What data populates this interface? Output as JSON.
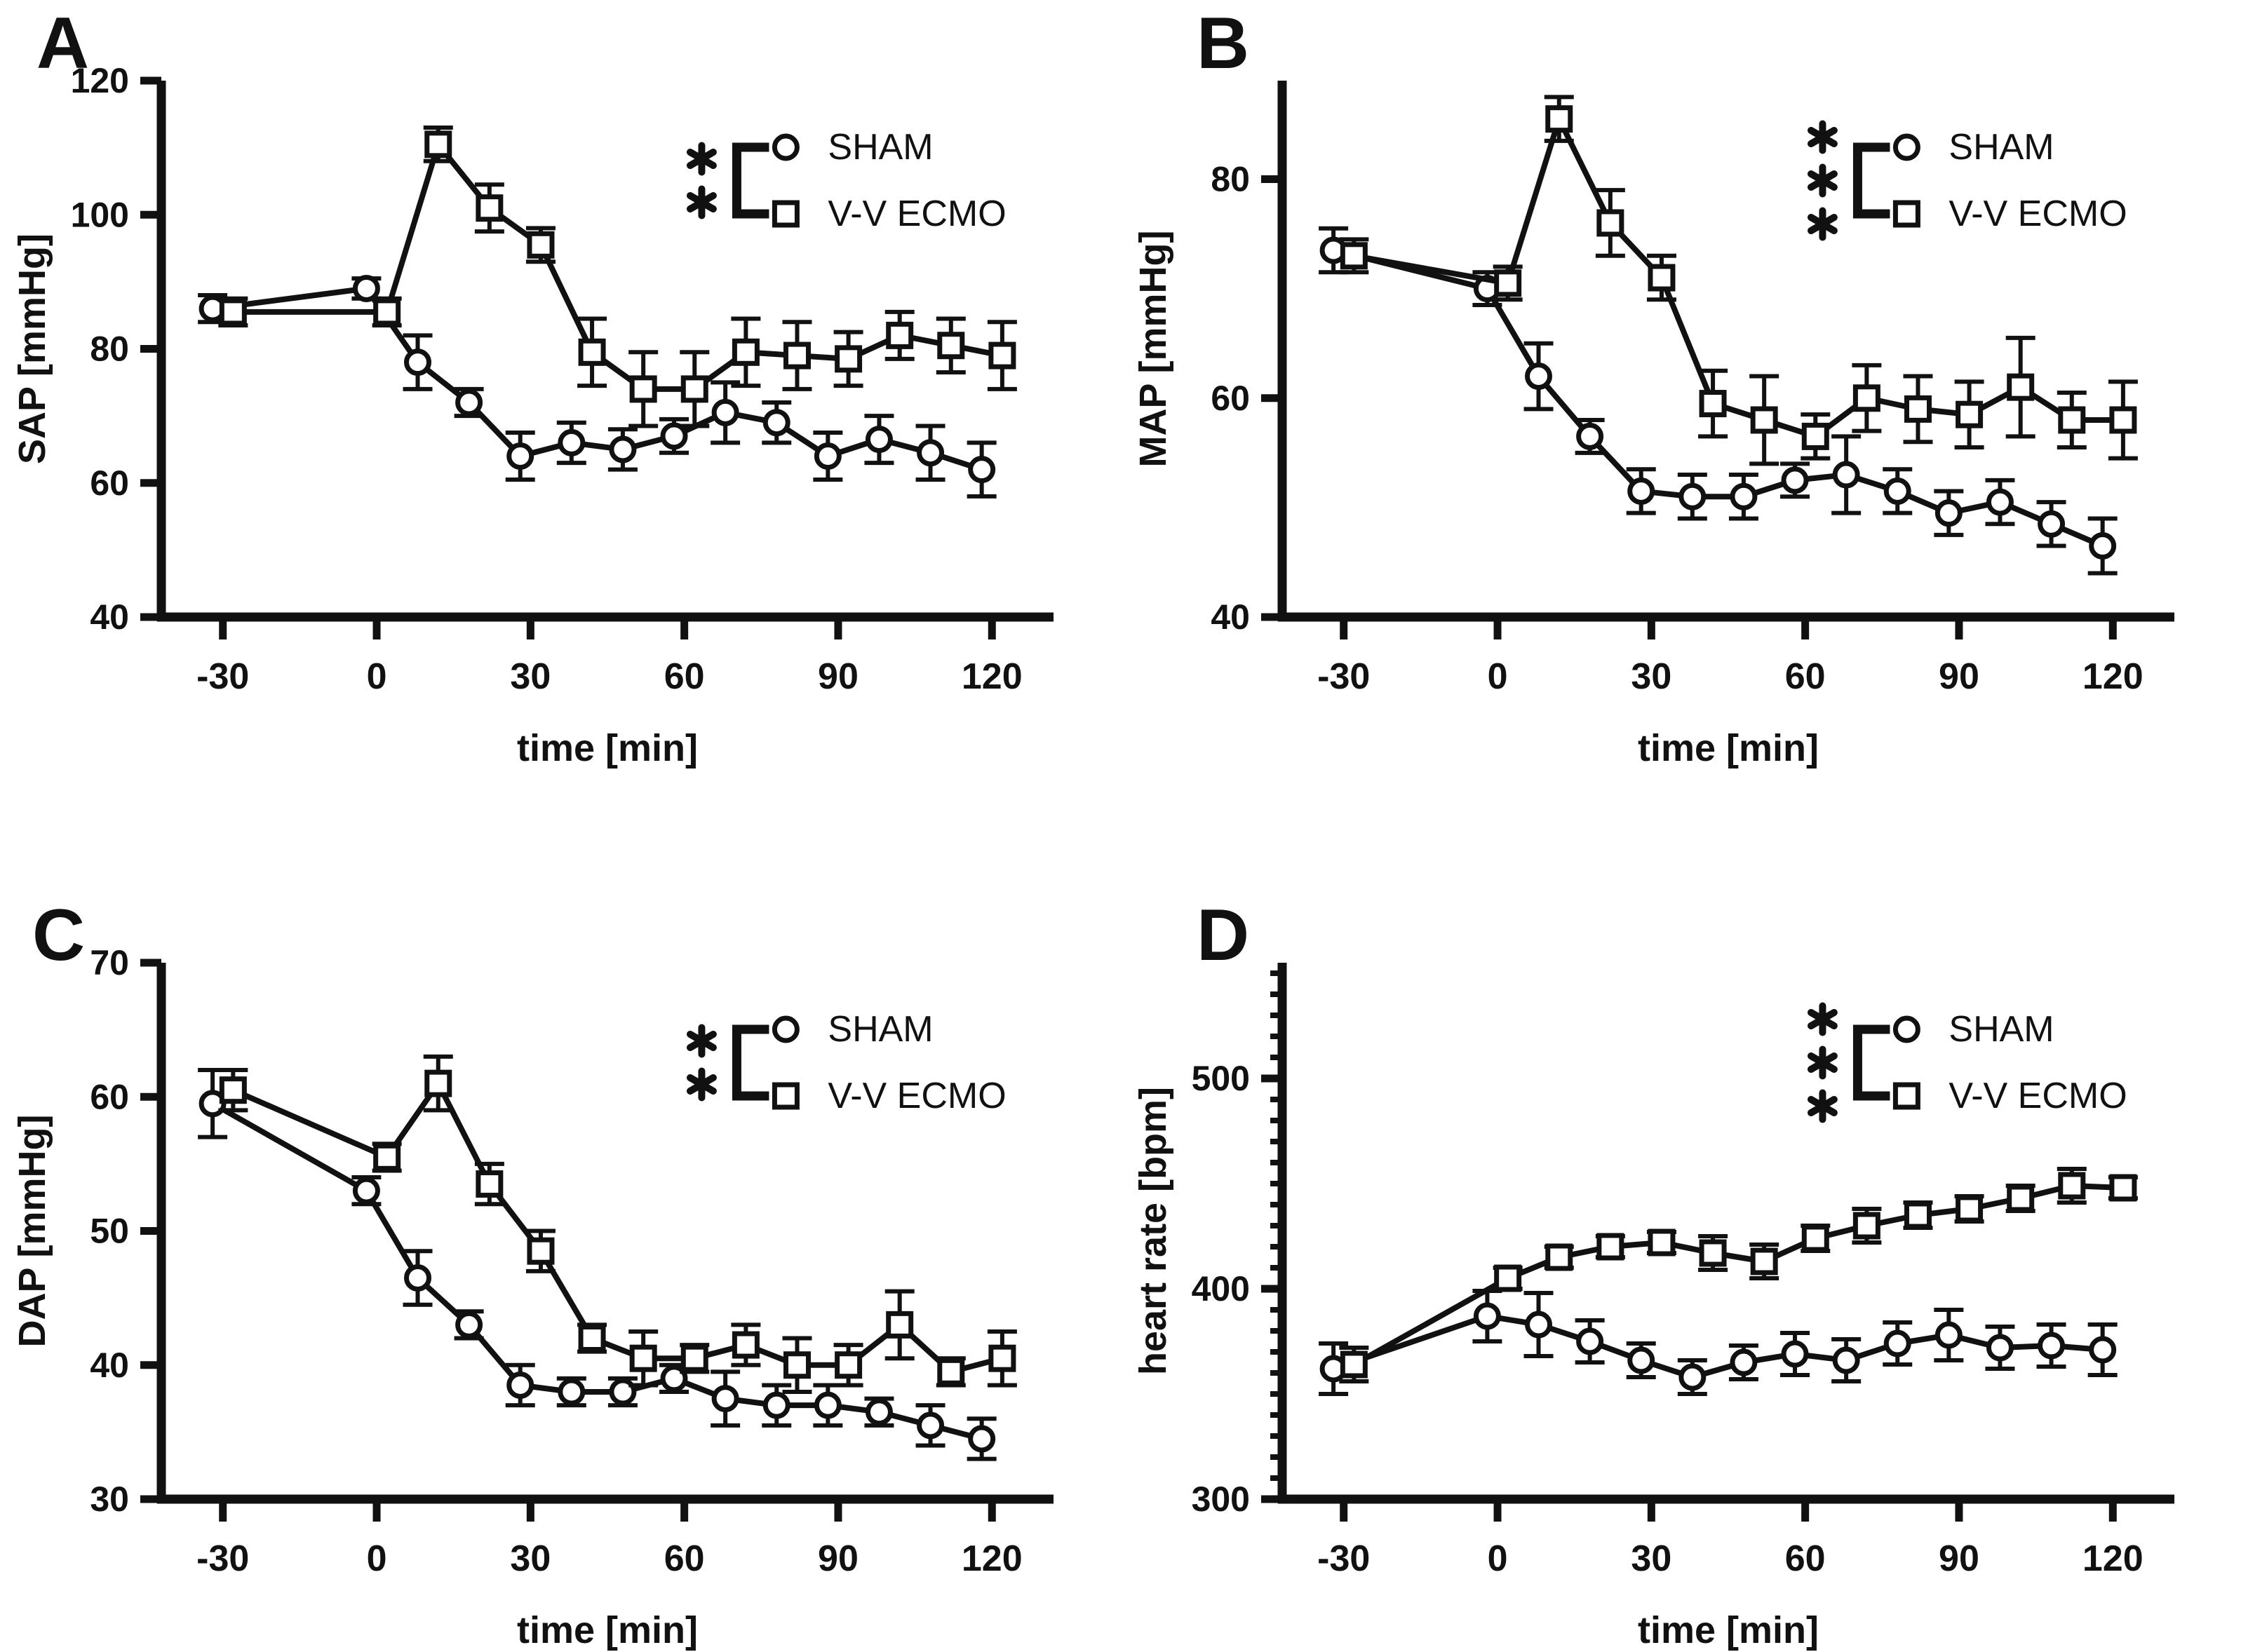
{
  "figure": {
    "description": "Four-panel line chart figure comparing SHAM and V-V ECMO groups over time",
    "ink_color": "#111111",
    "background_color": "#ffffff"
  },
  "legend": {
    "items": [
      {
        "marker": "circle",
        "label": "SHAM"
      },
      {
        "marker": "square",
        "label": "V-V ECMO"
      }
    ]
  },
  "chart_data": [
    {
      "panel_label": "A",
      "type": "line",
      "title": "",
      "xlabel": "time [min]",
      "ylabel": "SAP [mmHg]",
      "significance": "**",
      "legend_position": "upper right inside",
      "grid": false,
      "error_bars": true,
      "xlim": [
        -42,
        132
      ],
      "ylim": [
        40,
        120
      ],
      "xticks": [
        -30,
        0,
        30,
        60,
        90,
        120
      ],
      "yticks": [
        40,
        60,
        80,
        100,
        120
      ],
      "y_minor_step": null,
      "legend": [
        {
          "marker": "circle",
          "label": "SHAM"
        },
        {
          "marker": "square",
          "label": "V-V ECMO"
        }
      ],
      "series": [
        {
          "name": "SHAM",
          "marker": "circle",
          "x": [
            -32,
            -2,
            8,
            18,
            28,
            38,
            48,
            58,
            68,
            78,
            88,
            98,
            108,
            118
          ],
          "y": [
            86,
            89,
            78,
            72,
            64,
            66,
            65,
            67,
            70.5,
            69,
            64,
            66.5,
            64.5,
            62
          ],
          "err": [
            2,
            1.5,
            4,
            2,
            3.5,
            3,
            3,
            2.5,
            4.5,
            3,
            3.5,
            3.5,
            4,
            4
          ]
        },
        {
          "name": "V-V ECMO",
          "marker": "square",
          "x": [
            -28,
            2,
            12,
            22,
            32,
            42,
            52,
            62,
            72,
            82,
            92,
            102,
            112,
            122
          ],
          "y": [
            85.5,
            85.5,
            110.5,
            101,
            95.5,
            79.5,
            74,
            74,
            79.5,
            79,
            78.5,
            82,
            80.5,
            79
          ],
          "err": [
            2,
            2,
            2.5,
            3.5,
            2.5,
            5,
            5.5,
            5.5,
            5,
            5,
            4,
            3.5,
            4,
            5
          ]
        }
      ]
    },
    {
      "panel_label": "B",
      "type": "line",
      "title": "",
      "xlabel": "time [min]",
      "ylabel": "MAP [mmHg]",
      "significance": "***",
      "legend_position": "upper right inside",
      "grid": false,
      "error_bars": true,
      "xlim": [
        -42,
        132
      ],
      "ylim": [
        40,
        89
      ],
      "xticks": [
        -30,
        0,
        30,
        60,
        90,
        120
      ],
      "yticks": [
        40,
        60,
        80
      ],
      "y_minor_step": null,
      "legend": [
        {
          "marker": "circle",
          "label": "SHAM"
        },
        {
          "marker": "square",
          "label": "V-V ECMO"
        }
      ],
      "series": [
        {
          "name": "SHAM",
          "marker": "circle",
          "x": [
            -32,
            -2,
            8,
            18,
            28,
            38,
            48,
            58,
            68,
            78,
            88,
            98,
            108,
            118
          ],
          "y": [
            73.5,
            70,
            62,
            56.5,
            51.5,
            51,
            51,
            52.5,
            53,
            51.5,
            49.5,
            50.5,
            48.5,
            46.5
          ],
          "err": [
            2,
            1.5,
            3,
            1.5,
            2,
            2,
            2,
            1.5,
            3.5,
            2,
            2,
            2,
            2,
            2.5
          ]
        },
        {
          "name": "V-V ECMO",
          "marker": "square",
          "x": [
            -28,
            2,
            12,
            22,
            32,
            42,
            52,
            62,
            72,
            82,
            92,
            102,
            112,
            122
          ],
          "y": [
            73,
            70.5,
            85.5,
            76,
            71,
            59.5,
            58,
            56.5,
            60,
            59,
            58.5,
            61,
            58,
            58
          ],
          "err": [
            1.5,
            1.5,
            2,
            3,
            2,
            3,
            4,
            2,
            3,
            3,
            3,
            4.5,
            2.5,
            3.5
          ]
        }
      ]
    },
    {
      "panel_label": "C",
      "type": "line",
      "title": "",
      "xlabel": "time [min]",
      "ylabel": "DAP [mmHg]",
      "significance": "**",
      "legend_position": "upper right inside",
      "grid": false,
      "error_bars": true,
      "xlim": [
        -42,
        132
      ],
      "ylim": [
        30,
        70
      ],
      "xticks": [
        -30,
        0,
        30,
        60,
        90,
        120
      ],
      "yticks": [
        30,
        40,
        50,
        60,
        70
      ],
      "y_minor_step": null,
      "legend": [
        {
          "marker": "circle",
          "label": "SHAM"
        },
        {
          "marker": "square",
          "label": "V-V ECMO"
        }
      ],
      "series": [
        {
          "name": "SHAM",
          "marker": "circle",
          "x": [
            -32,
            -2,
            8,
            18,
            28,
            38,
            48,
            58,
            68,
            78,
            88,
            98,
            108,
            118
          ],
          "y": [
            59.5,
            53,
            46.5,
            43,
            38.5,
            38,
            38,
            39,
            37.5,
            37,
            37,
            36.5,
            35.5,
            34.5
          ],
          "err": [
            2.5,
            1,
            2,
            1,
            1.5,
            1,
            1,
            1,
            2,
            1.5,
            1.5,
            1,
            1.5,
            1.5
          ]
        },
        {
          "name": "V-V ECMO",
          "marker": "square",
          "x": [
            -28,
            2,
            12,
            22,
            32,
            42,
            52,
            62,
            72,
            82,
            92,
            102,
            112,
            122
          ],
          "y": [
            60.5,
            55.5,
            61,
            53.5,
            48.5,
            42,
            40.5,
            40.5,
            41.5,
            40,
            40,
            43,
            39.5,
            40.5
          ],
          "err": [
            1.5,
            1,
            2,
            1.5,
            1.5,
            1,
            2,
            1,
            1.5,
            2,
            1.5,
            2.5,
            1,
            2
          ]
        }
      ]
    },
    {
      "panel_label": "D",
      "type": "line",
      "title": "",
      "xlabel": "time [min]",
      "ylabel": "heart rate [bpm]",
      "significance": "***",
      "legend_position": "upper right inside",
      "grid": false,
      "error_bars": true,
      "xlim": [
        -42,
        132
      ],
      "ylim": [
        300,
        555
      ],
      "xticks": [
        -30,
        0,
        30,
        60,
        90,
        120
      ],
      "yticks": [
        300,
        400,
        500
      ],
      "y_minor_step": 10,
      "legend": [
        {
          "marker": "circle",
          "label": "SHAM"
        },
        {
          "marker": "square",
          "label": "V-V ECMO"
        }
      ],
      "series": [
        {
          "name": "SHAM",
          "marker": "circle",
          "x": [
            -32,
            -2,
            8,
            18,
            28,
            38,
            48,
            58,
            68,
            78,
            88,
            98,
            108,
            118
          ],
          "y": [
            362,
            387,
            383,
            375,
            366,
            358,
            365,
            369,
            366,
            374,
            378,
            372,
            373,
            371
          ],
          "err": [
            12,
            12,
            15,
            10,
            8,
            8,
            8,
            10,
            10,
            10,
            12,
            10,
            10,
            12
          ]
        },
        {
          "name": "V-V ECMO",
          "marker": "square",
          "x": [
            -28,
            2,
            12,
            22,
            32,
            42,
            52,
            62,
            72,
            82,
            92,
            102,
            112,
            122
          ],
          "y": [
            364,
            405,
            415,
            420,
            422,
            417,
            413,
            424,
            430,
            435,
            438,
            443,
            449,
            448
          ],
          "err": [
            8,
            5,
            5,
            5,
            5,
            8,
            8,
            6,
            8,
            6,
            6,
            6,
            8,
            5
          ]
        }
      ]
    }
  ]
}
